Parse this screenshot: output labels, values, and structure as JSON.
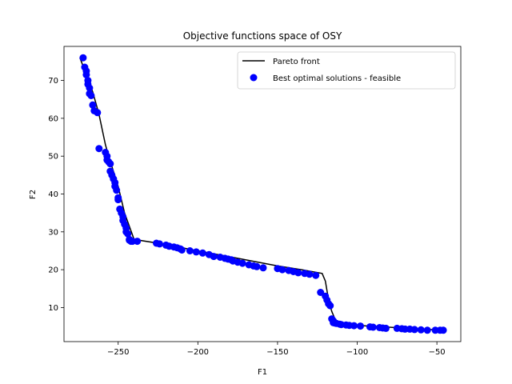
{
  "chart_data": {
    "type": "scatter",
    "title": "Objective functions space of OSY",
    "xlabel": "F1",
    "ylabel": "F2",
    "xlim": [
      -284,
      -35
    ],
    "ylim": [
      1,
      79
    ],
    "xticks": [
      -250,
      -200,
      -150,
      -100,
      -50
    ],
    "xtick_labels": [
      "−250",
      "−200",
      "−150",
      "−100",
      "−50"
    ],
    "yticks": [
      10,
      20,
      30,
      40,
      50,
      60,
      70
    ],
    "ytick_labels": [
      "10",
      "20",
      "30",
      "40",
      "50",
      "60",
      "70"
    ],
    "grid": false,
    "legend_position": "top-right",
    "series": [
      {
        "name": "Pareto front",
        "kind": "line",
        "color": "#000000",
        "x": [
          -274,
          -266,
          -262,
          -258,
          -256,
          -250,
          -246,
          -240,
          -225,
          -200,
          -175,
          -150,
          -135,
          -122,
          -120,
          -118,
          -116,
          -114,
          -112,
          -100,
          -80,
          -60,
          -46
        ],
        "y": [
          76,
          67,
          61,
          53,
          50,
          42,
          35,
          28,
          27,
          25,
          23,
          21,
          20,
          19,
          17,
          12,
          9,
          7,
          6,
          5.3,
          4.8,
          4.3,
          4
        ]
      },
      {
        "name": "Best optimal solutions - feasible",
        "kind": "scatter",
        "color": "#0000ff",
        "x": [
          -272,
          -271,
          -270,
          -270,
          -269,
          -269,
          -268,
          -268,
          -267,
          -266,
          -265,
          -263,
          -262,
          -258,
          -257,
          -257,
          -256,
          -255,
          -255,
          -254,
          -253,
          -252,
          -252,
          -251,
          -250,
          -250,
          -249,
          -248,
          -247,
          -247,
          -246,
          -245,
          -245,
          -244,
          -243,
          -243,
          -242,
          -241,
          -238,
          -226,
          -224,
          -220,
          -218,
          -215,
          -213,
          -211,
          -210,
          -205,
          -201,
          -197,
          -193,
          -190,
          -186,
          -183,
          -181,
          -179,
          -178,
          -175,
          -172,
          -168,
          -165,
          -163,
          -159,
          -150,
          -147,
          -143,
          -140,
          -137,
          -133,
          -130,
          -126,
          -123,
          -120,
          -119,
          -118,
          -117,
          -116,
          -115,
          -115,
          -114,
          -113,
          -111,
          -110,
          -107,
          -105,
          -102,
          -98,
          -92,
          -90,
          -86,
          -84,
          -82,
          -75,
          -72,
          -70,
          -67,
          -64,
          -60,
          -56,
          -51,
          -48,
          -46
        ],
        "y": [
          76,
          73.5,
          72.5,
          71.5,
          70,
          69,
          68,
          66.5,
          66,
          63.5,
          62,
          61.5,
          52,
          51,
          50,
          49,
          48.5,
          48,
          46,
          45,
          44,
          43,
          42,
          41,
          39,
          38.5,
          36,
          35,
          34,
          33,
          32,
          31,
          30,
          29.5,
          28,
          27.8,
          27.5,
          27.5,
          27.5,
          27,
          26.8,
          26.5,
          26.2,
          26,
          25.8,
          25.5,
          25.2,
          25,
          24.7,
          24.4,
          24,
          23.5,
          23.3,
          23,
          22.8,
          22.6,
          22.3,
          22,
          21.7,
          21.3,
          21,
          20.8,
          20.5,
          20.3,
          20,
          19.8,
          19.5,
          19.2,
          19,
          18.8,
          18.5,
          14,
          13,
          12,
          11,
          10.5,
          7,
          6.5,
          6,
          5.9,
          5.8,
          5.6,
          5.5,
          5.4,
          5.3,
          5.2,
          5.1,
          4.9,
          4.8,
          4.7,
          4.6,
          4.5,
          4.5,
          4.4,
          4.3,
          4.3,
          4.2,
          4.1,
          4,
          4,
          4,
          4
        ]
      }
    ]
  }
}
